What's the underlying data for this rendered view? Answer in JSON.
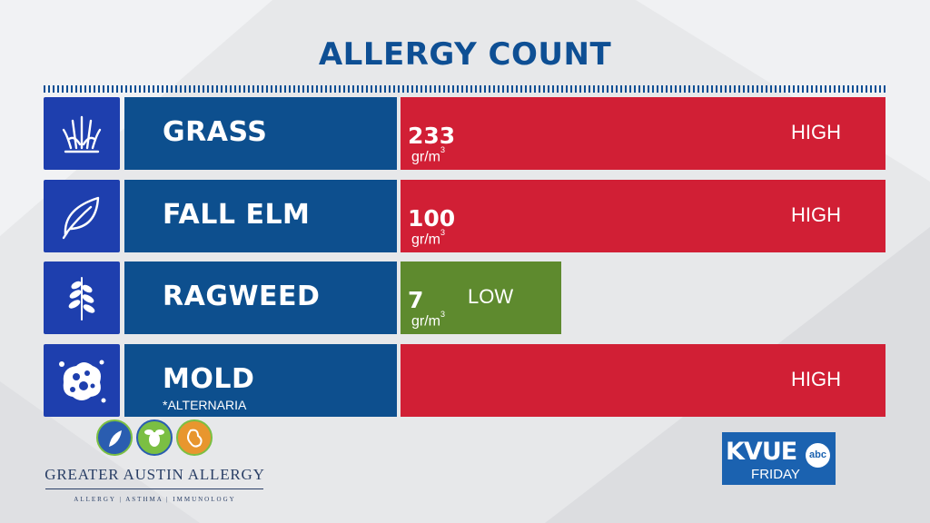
{
  "title": "ALLERGY COUNT",
  "colors": {
    "title": "#0e4f94",
    "high": "#d11f35",
    "low": "#5e8a2e",
    "label_bg": "#0d4f8e",
    "icon_bg": "#1e3fae"
  },
  "rows": [
    {
      "label": "GRASS",
      "sub": "",
      "icon": "grass-icon",
      "count": "233",
      "unit": "gr/m",
      "unit_sup": "3",
      "level": "HIGH",
      "fill": 1.0
    },
    {
      "label": "FALL ELM",
      "sub": "",
      "icon": "leaf-icon",
      "count": "100",
      "unit": "gr/m",
      "unit_sup": "3",
      "level": "HIGH",
      "fill": 1.0
    },
    {
      "label": "RAGWEED",
      "sub": "",
      "icon": "ragweed-icon",
      "count": "7",
      "unit": "gr/m",
      "unit_sup": "3",
      "level": "LOW",
      "fill": 0.33
    },
    {
      "label": "MOLD",
      "sub": "*ALTERNARIA",
      "icon": "mold-icon",
      "count": "",
      "unit": "",
      "unit_sup": "",
      "level": "HIGH",
      "fill": 1.0
    }
  ],
  "sponsor": {
    "name": "GREATER AUSTIN ALLERGY",
    "tagline": "ALLERGY | ASTHMA | IMMUNOLOGY",
    "badges": [
      "plant-badge-icon",
      "bee-badge-icon",
      "peanut-badge-icon"
    ]
  },
  "station": {
    "name": "KVUE",
    "network": "abc",
    "day": "FRIDAY"
  }
}
